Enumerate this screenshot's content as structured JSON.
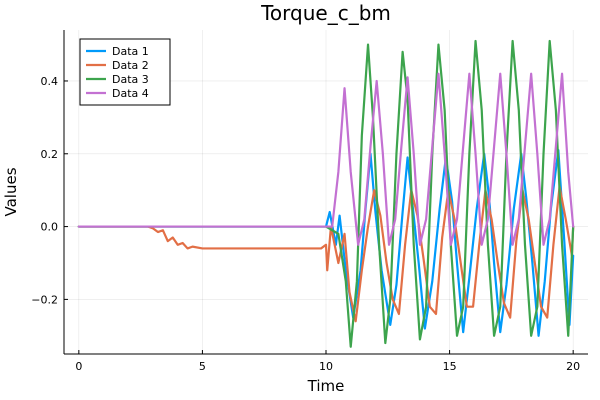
{
  "chart_data": {
    "type": "line",
    "title": "Torque_c_bm",
    "xlabel": "Time",
    "ylabel": "Values",
    "xlim": [
      -0.6,
      20.6
    ],
    "ylim": [
      -0.35,
      0.54
    ],
    "xticks": [
      0,
      5,
      10,
      15,
      20
    ],
    "xtick_labels": [
      "0",
      "5",
      "10",
      "15",
      "20"
    ],
    "yticks": [
      -0.2,
      0.0,
      0.2,
      0.4
    ],
    "ytick_labels": [
      "−0.2",
      "0.0",
      "0.2",
      "0.4"
    ],
    "grid": true,
    "legend_position": "top-left",
    "series": [
      {
        "name": "Data 1",
        "color": "#009AFA",
        "x": [
          0,
          10.0,
          10.15,
          10.4,
          10.55,
          10.8,
          11.1,
          11.4,
          11.6,
          11.8,
          12.0,
          12.25,
          12.6,
          12.85,
          13.1,
          13.3,
          13.5,
          13.75,
          14.0,
          14.3,
          14.6,
          14.85,
          15.1,
          15.3,
          15.55,
          15.8,
          16.1,
          16.4,
          16.6,
          16.8,
          17.05,
          17.3,
          17.6,
          17.9,
          18.1,
          18.35,
          18.6,
          18.85,
          19.1,
          19.4,
          19.65,
          19.85,
          20.0
        ],
        "y": [
          0,
          0,
          0.04,
          -0.05,
          0.03,
          -0.12,
          -0.25,
          -0.12,
          0.05,
          0.2,
          0.04,
          -0.12,
          -0.27,
          -0.16,
          0.04,
          0.19,
          0.06,
          -0.1,
          -0.28,
          -0.15,
          0.05,
          0.19,
          0.07,
          -0.1,
          -0.29,
          -0.14,
          0.05,
          0.2,
          0.08,
          -0.1,
          -0.29,
          -0.16,
          0.05,
          0.2,
          0.08,
          -0.1,
          -0.3,
          -0.15,
          0.05,
          0.21,
          -0.05,
          -0.27,
          -0.08
        ]
      },
      {
        "name": "Data 2",
        "color": "#E26F46",
        "x": [
          0,
          2.8,
          3.0,
          3.2,
          3.4,
          3.6,
          3.8,
          4.0,
          4.2,
          4.4,
          4.6,
          5.0,
          5.4,
          5.8,
          6.0,
          7.0,
          8.0,
          9.0,
          9.8,
          10.0,
          10.05,
          10.2,
          10.5,
          10.75,
          10.95,
          11.2,
          11.45,
          11.7,
          11.95,
          12.2,
          12.45,
          12.7,
          12.95,
          13.2,
          13.45,
          13.7,
          13.95,
          14.2,
          14.45,
          14.7,
          14.95,
          15.2,
          15.45,
          15.7,
          15.95,
          16.2,
          16.45,
          16.7,
          16.95,
          17.2,
          17.45,
          17.7,
          17.95,
          18.2,
          18.45,
          18.7,
          18.95,
          19.2,
          19.45,
          19.7,
          19.95,
          20.0
        ],
        "y": [
          0,
          0,
          -0.005,
          -0.015,
          -0.01,
          -0.04,
          -0.03,
          -0.05,
          -0.045,
          -0.06,
          -0.055,
          -0.06,
          -0.06,
          -0.06,
          -0.06,
          -0.06,
          -0.06,
          -0.06,
          -0.06,
          -0.05,
          -0.12,
          0.0,
          -0.1,
          -0.02,
          -0.18,
          -0.26,
          -0.12,
          0.0,
          0.1,
          0.03,
          -0.1,
          -0.2,
          -0.24,
          -0.05,
          0.1,
          0.03,
          -0.09,
          -0.22,
          -0.24,
          -0.03,
          0.1,
          0.02,
          -0.1,
          -0.22,
          -0.22,
          -0.05,
          0.1,
          0.02,
          -0.1,
          -0.21,
          -0.25,
          -0.04,
          0.1,
          0.02,
          -0.1,
          -0.22,
          -0.25,
          -0.05,
          0.11,
          0.02,
          -0.08,
          0.0
        ]
      },
      {
        "name": "Data 3",
        "color": "#3DA44D",
        "x": [
          0,
          10.0,
          10.5,
          10.8,
          11.0,
          11.25,
          11.45,
          11.7,
          11.9,
          12.15,
          12.4,
          12.6,
          12.85,
          13.1,
          13.3,
          13.55,
          13.8,
          14.05,
          14.3,
          14.55,
          14.8,
          15.05,
          15.3,
          15.55,
          15.8,
          16.05,
          16.3,
          16.55,
          16.8,
          17.05,
          17.3,
          17.55,
          17.8,
          18.05,
          18.3,
          18.55,
          18.8,
          19.05,
          19.3,
          19.55,
          19.8,
          20.0
        ],
        "y": [
          0,
          0,
          -0.02,
          -0.15,
          -0.33,
          -0.15,
          0.25,
          0.5,
          0.3,
          -0.05,
          -0.32,
          -0.2,
          0.2,
          0.48,
          0.35,
          -0.05,
          -0.31,
          -0.22,
          0.2,
          0.5,
          0.32,
          -0.05,
          -0.3,
          -0.22,
          0.2,
          0.51,
          0.32,
          -0.05,
          -0.3,
          -0.22,
          0.2,
          0.51,
          0.32,
          -0.05,
          -0.3,
          -0.22,
          0.2,
          0.51,
          0.32,
          -0.05,
          -0.3,
          0.0
        ]
      },
      {
        "name": "Data 4",
        "color": "#C371D2",
        "x": [
          0,
          10.0,
          10.25,
          10.5,
          10.75,
          11.0,
          11.3,
          11.55,
          11.8,
          12.05,
          12.3,
          12.55,
          12.8,
          13.05,
          13.3,
          13.55,
          13.8,
          14.05,
          14.3,
          14.55,
          14.8,
          15.05,
          15.3,
          15.55,
          15.8,
          16.05,
          16.3,
          16.55,
          16.8,
          17.05,
          17.3,
          17.55,
          17.8,
          18.05,
          18.3,
          18.55,
          18.8,
          19.05,
          19.3,
          19.55,
          19.8,
          20.0
        ],
        "y": [
          0,
          0,
          0.0,
          0.15,
          0.38,
          0.15,
          -0.05,
          0.02,
          0.22,
          0.4,
          0.2,
          -0.05,
          0.02,
          0.22,
          0.41,
          0.2,
          -0.05,
          0.02,
          0.22,
          0.42,
          0.2,
          -0.05,
          0.02,
          0.22,
          0.42,
          0.2,
          -0.05,
          0.02,
          0.22,
          0.42,
          0.2,
          -0.05,
          0.02,
          0.22,
          0.42,
          0.2,
          -0.05,
          0.02,
          0.22,
          0.42,
          0.15,
          0.0
        ]
      }
    ]
  }
}
